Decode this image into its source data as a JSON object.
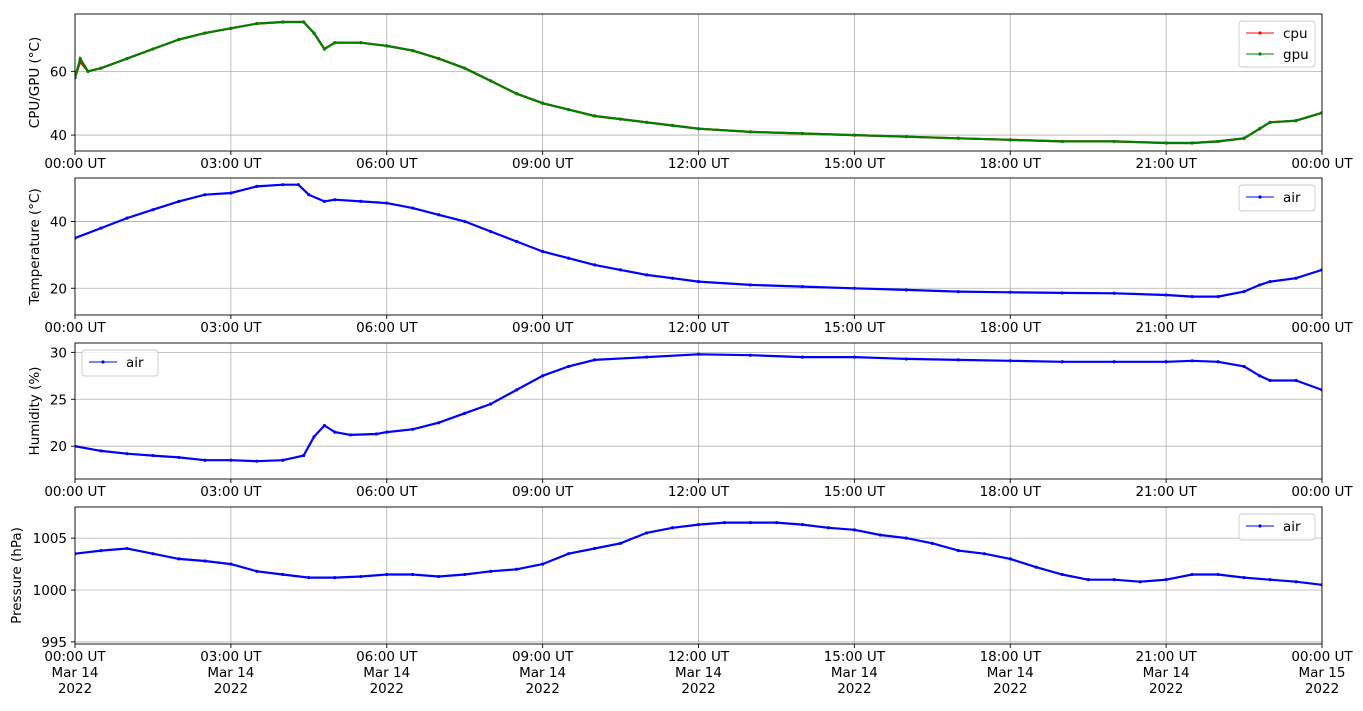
{
  "chart_data": [
    {
      "type": "line",
      "ylabel": "CPU/GPU (°C)",
      "ylim": [
        35,
        78
      ],
      "yticks": [
        40,
        60
      ],
      "xlim": [
        0,
        24
      ],
      "xticks": [
        0,
        3,
        6,
        9,
        12,
        15,
        18,
        21,
        24
      ],
      "xtick_labels": [
        "00:00 UT",
        "03:00 UT",
        "06:00 UT",
        "09:00 UT",
        "12:00 UT",
        "15:00 UT",
        "18:00 UT",
        "21:00 UT",
        "00:00 UT"
      ],
      "grid": true,
      "legend_position": "top-right",
      "series": [
        {
          "name": "cpu",
          "color": "#ff0000",
          "x": [
            0,
            0.1,
            0.25,
            0.5,
            1.0,
            1.5,
            2.0,
            2.5,
            3.0,
            3.5,
            4.0,
            4.4,
            4.6,
            4.8,
            5.0,
            5.5,
            6.0,
            6.5,
            7.0,
            7.5,
            8.0,
            8.5,
            9.0,
            9.5,
            10.0,
            10.5,
            11.0,
            11.5,
            12.0,
            13.0,
            14.0,
            15.0,
            16.0,
            17.0,
            18.0,
            19.0,
            20.0,
            21.0,
            21.5,
            22.0,
            22.5,
            22.8,
            23.0,
            23.5,
            24.0
          ],
          "y": [
            58,
            63,
            60,
            61,
            64,
            67,
            70,
            72,
            73.5,
            75,
            75.5,
            75.5,
            72,
            67,
            69,
            69,
            68,
            66.5,
            64,
            61,
            57,
            53,
            50,
            48,
            46,
            45,
            44,
            43,
            42,
            41,
            40.5,
            40,
            39.5,
            39,
            38.5,
            38,
            38,
            37.5,
            37.5,
            38,
            39,
            42,
            44,
            44.5,
            47
          ]
        },
        {
          "name": "gpu",
          "color": "#008000",
          "x": [
            0,
            0.1,
            0.25,
            0.5,
            1.0,
            1.5,
            2.0,
            2.5,
            3.0,
            3.5,
            4.0,
            4.4,
            4.6,
            4.8,
            5.0,
            5.5,
            6.0,
            6.5,
            7.0,
            7.5,
            8.0,
            8.5,
            9.0,
            9.5,
            10.0,
            10.5,
            11.0,
            11.5,
            12.0,
            13.0,
            14.0,
            15.0,
            16.0,
            17.0,
            18.0,
            19.0,
            20.0,
            21.0,
            21.5,
            22.0,
            22.5,
            22.8,
            23.0,
            23.5,
            24.0
          ],
          "y": [
            58,
            64,
            60,
            61,
            64,
            67,
            70,
            72,
            73.5,
            75,
            75.5,
            75.5,
            72,
            67,
            69,
            69,
            68,
            66.5,
            64,
            61,
            57,
            53,
            50,
            48,
            46,
            45,
            44,
            43,
            42,
            41,
            40.5,
            40,
            39.5,
            39,
            38.5,
            38,
            38,
            37.5,
            37.5,
            38,
            39,
            42,
            44,
            44.5,
            47
          ]
        }
      ]
    },
    {
      "type": "line",
      "ylabel": "Temperature (°C)",
      "ylim": [
        12,
        53
      ],
      "yticks": [
        20,
        40
      ],
      "xlim": [
        0,
        24
      ],
      "xticks": [
        0,
        3,
        6,
        9,
        12,
        15,
        18,
        21,
        24
      ],
      "xtick_labels": [
        "00:00 UT",
        "03:00 UT",
        "06:00 UT",
        "09:00 UT",
        "12:00 UT",
        "15:00 UT",
        "18:00 UT",
        "21:00 UT",
        "00:00 UT"
      ],
      "grid": true,
      "legend_position": "top-right",
      "series": [
        {
          "name": "air",
          "color": "#0000ff",
          "x": [
            0,
            0.5,
            1.0,
            1.5,
            2.0,
            2.5,
            3.0,
            3.5,
            4.0,
            4.3,
            4.5,
            4.8,
            5.0,
            5.5,
            6.0,
            6.5,
            7.0,
            7.5,
            8.0,
            8.5,
            9.0,
            9.5,
            10.0,
            10.5,
            11.0,
            11.5,
            12.0,
            13.0,
            14.0,
            15.0,
            16.0,
            17.0,
            18.0,
            19.0,
            20.0,
            21.0,
            21.5,
            22.0,
            22.5,
            22.8,
            23.0,
            23.5,
            24.0
          ],
          "y": [
            35,
            38,
            41,
            43.5,
            46,
            48,
            48.5,
            50.5,
            51,
            51,
            48,
            46,
            46.5,
            46,
            45.5,
            44,
            42,
            40,
            37,
            34,
            31,
            29,
            27,
            25.5,
            24,
            23,
            22,
            21,
            20.5,
            20,
            19.5,
            19,
            18.8,
            18.6,
            18.5,
            18,
            17.5,
            17.5,
            19,
            21,
            22,
            23,
            25.5
          ]
        }
      ]
    },
    {
      "type": "line",
      "ylabel": "Humidity (%)",
      "ylim": [
        16.5,
        31
      ],
      "yticks": [
        20,
        25,
        30
      ],
      "xlim": [
        0,
        24
      ],
      "xticks": [
        0,
        3,
        6,
        9,
        12,
        15,
        18,
        21,
        24
      ],
      "xtick_labels": [
        "00:00 UT",
        "03:00 UT",
        "06:00 UT",
        "09:00 UT",
        "12:00 UT",
        "15:00 UT",
        "18:00 UT",
        "21:00 UT",
        "00:00 UT"
      ],
      "grid": true,
      "legend_position": "top-left",
      "series": [
        {
          "name": "air",
          "color": "#0000ff",
          "x": [
            0,
            0.5,
            1.0,
            1.5,
            2.0,
            2.5,
            3.0,
            3.5,
            4.0,
            4.4,
            4.6,
            4.8,
            5.0,
            5.3,
            5.8,
            6.0,
            6.5,
            7.0,
            7.5,
            8.0,
            8.5,
            9.0,
            9.5,
            10.0,
            11.0,
            12.0,
            13.0,
            14.0,
            15.0,
            16.0,
            17.0,
            18.0,
            19.0,
            20.0,
            21.0,
            21.5,
            22.0,
            22.5,
            22.8,
            23.0,
            23.5,
            24.0
          ],
          "y": [
            20,
            19.5,
            19.2,
            19,
            18.8,
            18.5,
            18.5,
            18.4,
            18.5,
            19,
            21,
            22.2,
            21.5,
            21.2,
            21.3,
            21.5,
            21.8,
            22.5,
            23.5,
            24.5,
            26,
            27.5,
            28.5,
            29.2,
            29.5,
            29.8,
            29.7,
            29.5,
            29.5,
            29.3,
            29.2,
            29.1,
            29,
            29,
            29,
            29.1,
            29,
            28.5,
            27.5,
            27,
            27,
            26
          ]
        }
      ]
    },
    {
      "type": "line",
      "ylabel": "Pressure (hPa)",
      "ylim": [
        994.8,
        1008
      ],
      "yticks": [
        995,
        1000,
        1005
      ],
      "xlim": [
        0,
        24
      ],
      "xticks": [
        0,
        3,
        6,
        9,
        12,
        15,
        18,
        21,
        24
      ],
      "xtick_labels": [
        "00:00 UT\nMar 14\n2022",
        "03:00 UT\nMar 14\n2022",
        "06:00 UT\nMar 14\n2022",
        "09:00 UT\nMar 14\n2022",
        "12:00 UT\nMar 14\n2022",
        "15:00 UT\nMar 14\n2022",
        "18:00 UT\nMar 14\n2022",
        "21:00 UT\nMar 14\n2022",
        "00:00 UT\nMar 15\n2022"
      ],
      "grid": true,
      "legend_position": "top-right",
      "series": [
        {
          "name": "air",
          "color": "#0000ff",
          "x": [
            0,
            0.5,
            1.0,
            1.5,
            2.0,
            2.5,
            3.0,
            3.5,
            4.0,
            4.5,
            5.0,
            5.5,
            6.0,
            6.5,
            7.0,
            7.5,
            8.0,
            8.5,
            9.0,
            9.5,
            10.0,
            10.5,
            11.0,
            11.5,
            12.0,
            12.5,
            13.0,
            13.5,
            14.0,
            14.5,
            15.0,
            15.5,
            16.0,
            16.5,
            17.0,
            17.5,
            18.0,
            18.5,
            19.0,
            19.5,
            20.0,
            20.5,
            21.0,
            21.5,
            22.0,
            22.5,
            23.0,
            23.5,
            24.0
          ],
          "y": [
            1003.5,
            1003.8,
            1004,
            1003.5,
            1003,
            1002.8,
            1002.5,
            1001.8,
            1001.5,
            1001.2,
            1001.2,
            1001.3,
            1001.5,
            1001.5,
            1001.3,
            1001.5,
            1001.8,
            1002,
            1002.5,
            1003.5,
            1004,
            1004.5,
            1005.5,
            1006,
            1006.3,
            1006.5,
            1006.5,
            1006.5,
            1006.3,
            1006,
            1005.8,
            1005.3,
            1005,
            1004.5,
            1003.8,
            1003.5,
            1003,
            1002.2,
            1001.5,
            1001,
            1001,
            1000.8,
            1001,
            1001.5,
            1001.5,
            1001.2,
            1001,
            1000.8,
            1000.5
          ]
        }
      ],
      "annotations": []
    }
  ]
}
